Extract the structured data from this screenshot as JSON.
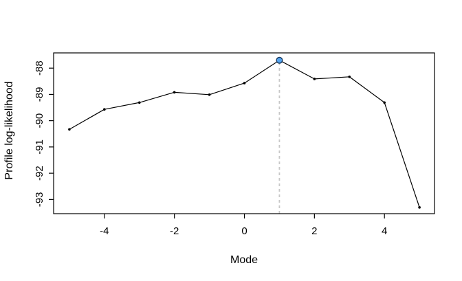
{
  "chart_data": {
    "type": "line",
    "title": "",
    "xlabel": "Mode",
    "ylabel": "Profile log-likelihood",
    "x": [
      -5,
      -4,
      -3,
      -2,
      -1,
      0,
      1,
      2,
      3,
      4,
      5
    ],
    "y": [
      -90.33,
      -89.57,
      -89.31,
      -88.92,
      -89.01,
      -88.57,
      -87.7,
      -88.41,
      -88.33,
      -89.31,
      -93.3
    ],
    "x_ticks": [
      -4,
      -2,
      0,
      2,
      4
    ],
    "y_ticks": [
      -88,
      -89,
      -90,
      -91,
      -92,
      -93
    ],
    "xlim": [
      -5.45,
      5.43
    ],
    "ylim": [
      -93.54,
      -87.42
    ],
    "grid": "off",
    "legend": "none",
    "line_color": "#000000",
    "marker_color": "#000000",
    "box_color": "#000000",
    "background": "#ffffff",
    "highlight_point": {
      "x": 1,
      "y": -87.7,
      "fill": "#55a5f0",
      "stroke": "#16365c"
    },
    "guide_line": {
      "x": 1,
      "style": "dashed",
      "color": "#c8c8c8"
    }
  }
}
